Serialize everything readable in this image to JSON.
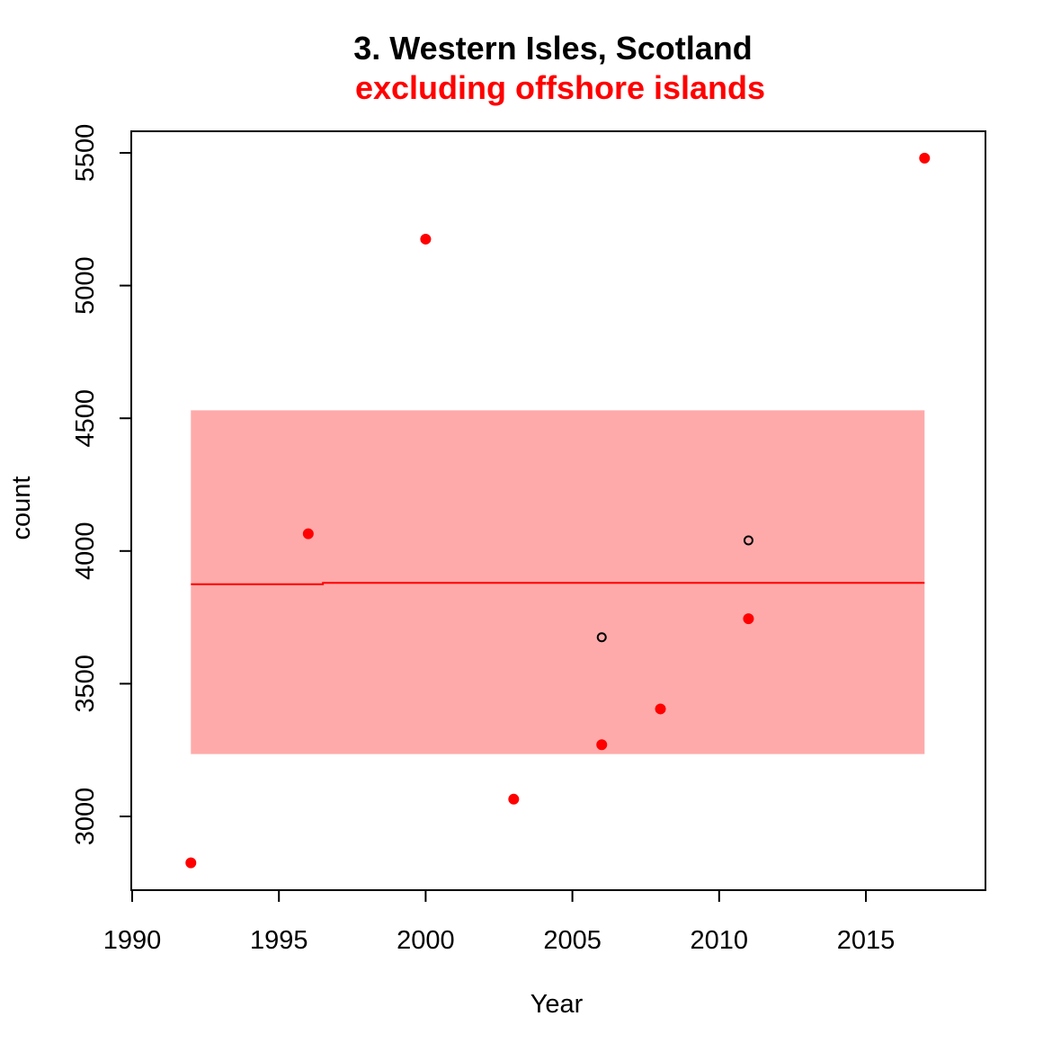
{
  "chart_data": {
    "type": "scatter",
    "title": "3. Western Isles, Scotland",
    "subtitle": "excluding offshore islands",
    "xlabel": "Year",
    "ylabel": "count",
    "xlim": [
      1990,
      2019
    ],
    "ylim": [
      2730,
      5590
    ],
    "x_ticks": [
      "1990",
      "1995",
      "2000",
      "2005",
      "2010",
      "2015"
    ],
    "y_ticks": [
      "3000",
      "3500",
      "4000",
      "4500",
      "5000",
      "5500"
    ],
    "grid": false,
    "series": [
      {
        "marker": "filled-circle",
        "color": "#ff0000",
        "points": [
          {
            "x": 1992,
            "y": 2825
          },
          {
            "x": 1996,
            "y": 4065
          },
          {
            "x": 2000,
            "y": 5175
          },
          {
            "x": 2003,
            "y": 3065
          },
          {
            "x": 2006,
            "y": 3270
          },
          {
            "x": 2008,
            "y": 3405
          },
          {
            "x": 2011,
            "y": 3745
          },
          {
            "x": 2017,
            "y": 5480
          }
        ]
      },
      {
        "marker": "open-circle",
        "color": "#000000",
        "points": [
          {
            "x": 2006,
            "y": 3675
          },
          {
            "x": 2011,
            "y": 4040
          }
        ]
      }
    ],
    "trend_line": {
      "color": "#ff0000",
      "points": [
        {
          "x": 1992,
          "y": 3875
        },
        {
          "x": 1996.5,
          "y": 3875
        },
        {
          "x": 1996.5,
          "y": 3880
        },
        {
          "x": 2017,
          "y": 3880
        }
      ]
    },
    "confidence_band": {
      "color": "#ffaaaa",
      "x_range": [
        1992,
        2017
      ],
      "y_range": [
        3235,
        4530
      ]
    }
  }
}
